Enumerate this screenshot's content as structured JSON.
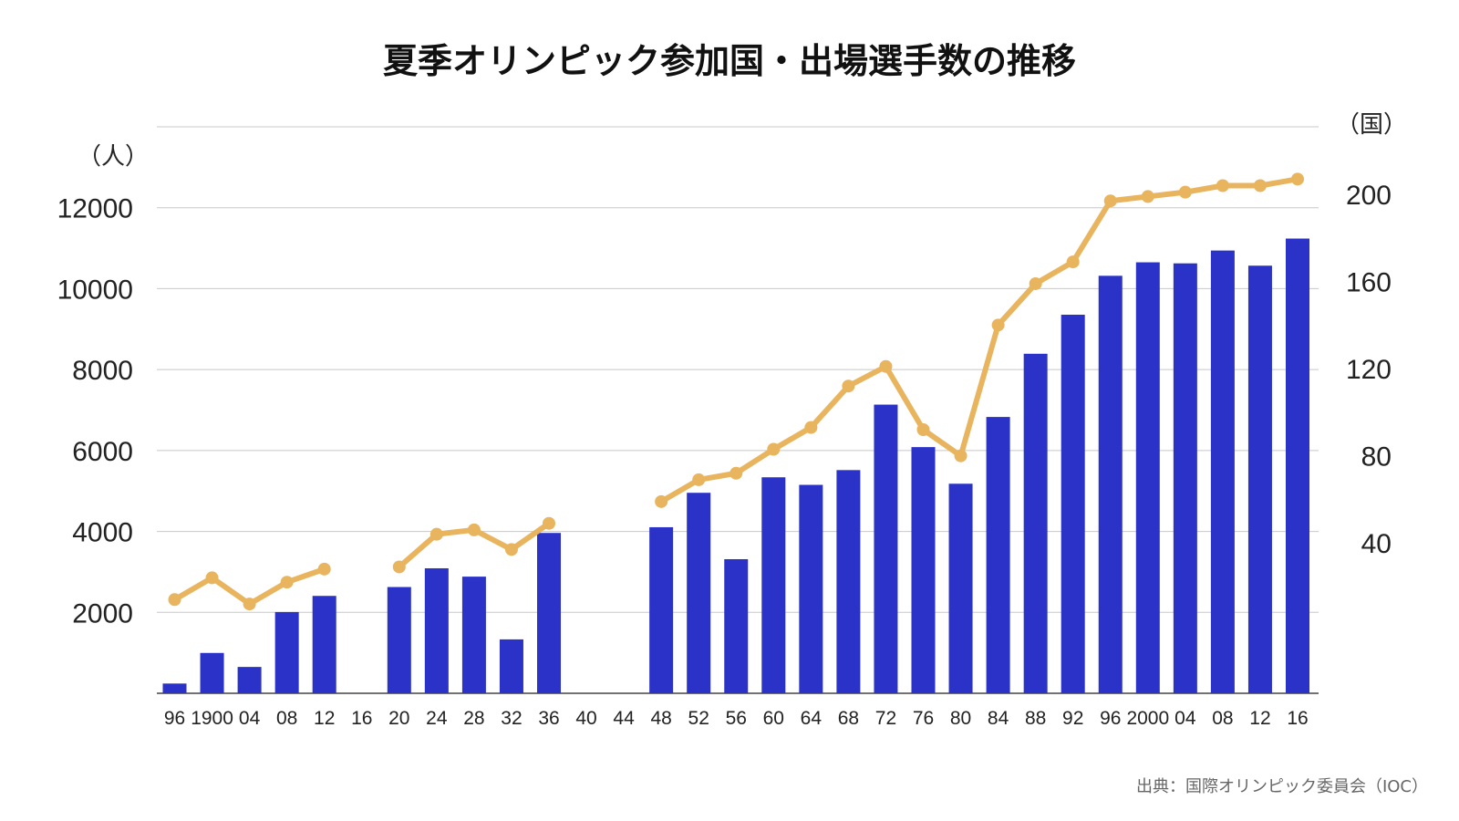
{
  "chart_data": {
    "type": "bar",
    "title": "夏季オリンピック参加国・出場選手数の推移",
    "categories": [
      "96",
      "1900",
      "04",
      "08",
      "12",
      "16",
      "20",
      "24",
      "28",
      "32",
      "36",
      "40",
      "44",
      "48",
      "52",
      "56",
      "60",
      "64",
      "68",
      "72",
      "76",
      "80",
      "84",
      "88",
      "92",
      "96",
      "2000",
      "04",
      "08",
      "12",
      "16"
    ],
    "series": [
      {
        "axis": "left",
        "type": "bar",
        "color": "#2a32c8",
        "values": [
          241,
          997,
          651,
          2008,
          2407,
          null,
          2626,
          3089,
          2883,
          1332,
          3963,
          null,
          null,
          4104,
          4955,
          3314,
          5338,
          5151,
          5516,
          7134,
          6084,
          5179,
          6829,
          8391,
          9356,
          10318,
          10651,
          10625,
          10942,
          10568,
          11238
        ]
      },
      {
        "axis": "right",
        "type": "line",
        "color": "#e8b45e",
        "values": [
          14,
          24,
          12,
          22,
          28,
          null,
          29,
          44,
          46,
          37,
          49,
          null,
          null,
          59,
          69,
          72,
          83,
          93,
          112,
          121,
          92,
          80,
          140,
          159,
          169,
          197,
          199,
          201,
          204,
          204,
          207
        ]
      }
    ],
    "y_left": {
      "label": "（人）",
      "ticks": [
        2000,
        4000,
        6000,
        8000,
        10000,
        12000
      ],
      "lim": [
        0,
        14000
      ]
    },
    "y_right": {
      "label": "（国）",
      "ticks": [
        40,
        80,
        120,
        160,
        200
      ],
      "lim": [
        -29,
        231
      ]
    },
    "grid": true,
    "source": "出典：国際オリンピック委員会（IOC）"
  }
}
